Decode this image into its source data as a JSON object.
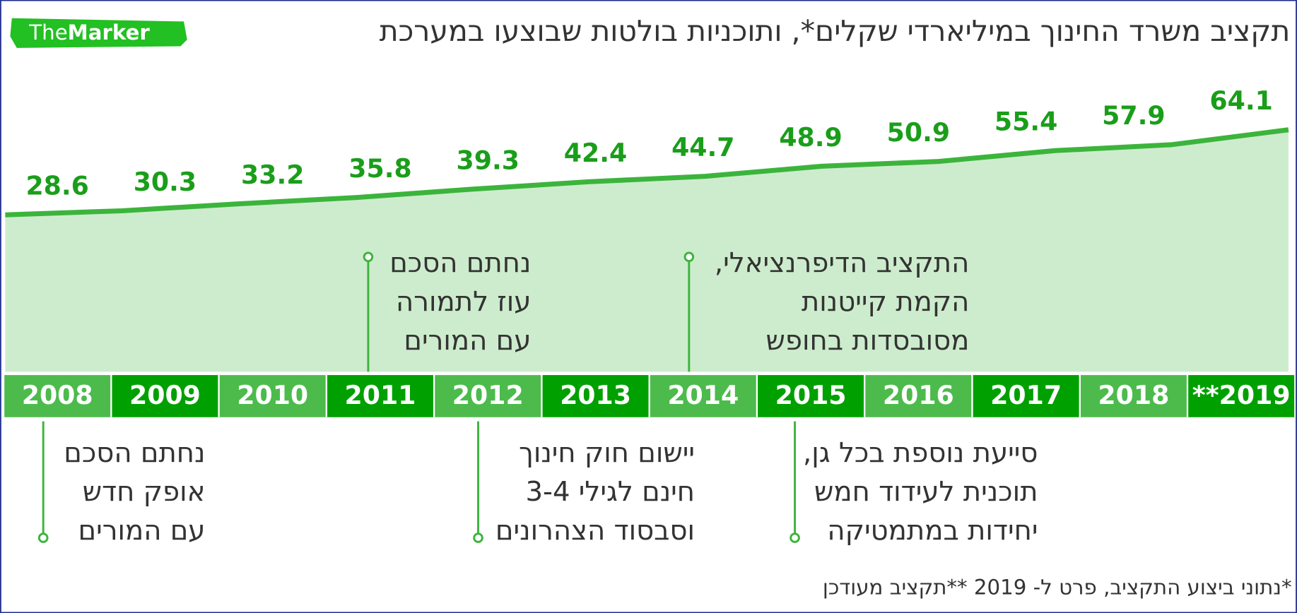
{
  "logo": {
    "first": "The",
    "second": "Marker"
  },
  "chart_data": {
    "type": "area",
    "title": "תקציב משרד החינוך במיליארדי שקלים*, ותוכניות בולטות שבוצעו במערכת",
    "categories": [
      "2008",
      "2009",
      "2010",
      "2011",
      "2012",
      "2013",
      "2014",
      "2015",
      "2016",
      "2017",
      "2018",
      "**2019"
    ],
    "values": [
      28.6,
      30.3,
      33.2,
      35.8,
      39.3,
      42.4,
      44.7,
      48.9,
      50.9,
      55.4,
      57.9,
      64.1
    ],
    "color": "#3cb43c",
    "area_color": "#cdeccd",
    "label_color": "#1a9e1a",
    "band_colors": [
      "#4cbb4c",
      "#00a000"
    ],
    "annotations": [
      {
        "lines": [
          "נחתם הסכם",
          "עוז לתמורה",
          "עם המורים"
        ]
      },
      {
        "lines": [
          "התקציב הדיפרנציאלי,",
          "הקמת קייטנות",
          "מסובסדות בחופש"
        ]
      },
      {
        "lines": [
          "נחתם הסכם",
          "אופק חדש",
          "עם המורים"
        ]
      },
      {
        "lines": [
          "יישום חוק חינוך",
          "חינם לגילי 3-4",
          "וסבסוד הצהרונים"
        ]
      },
      {
        "lines": [
          "סייעת נוספת בכל גן,",
          "תוכנית לעידוד חמש",
          "יחידות במתמטיקה"
        ]
      }
    ],
    "footnote": "*נתוני ביצוע התקציב, פרט ל- 2019 **תקציב מעודכן"
  }
}
